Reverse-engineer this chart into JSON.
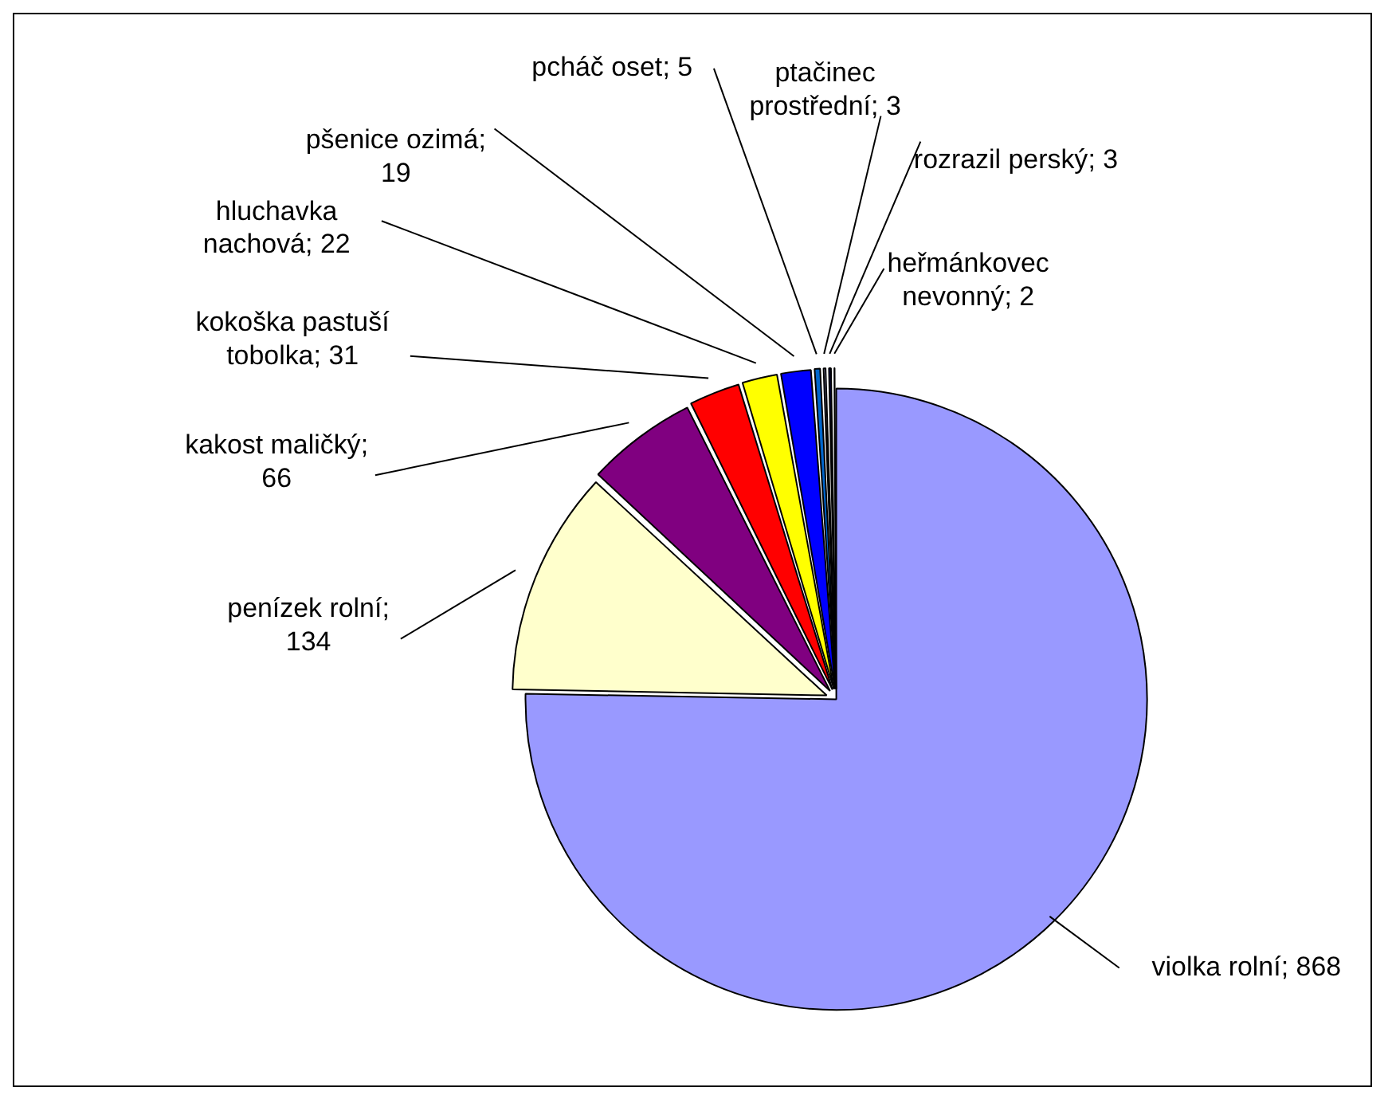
{
  "chart_data": {
    "type": "pie",
    "categories": [
      "violka rolní",
      "penízek rolní",
      "kakost maličký",
      "kokoška pastuší tobolka",
      "hluchavka nachová",
      "pšenice ozimá",
      "pcháč oset",
      "ptačinec prostřední",
      "rozrazil perský",
      "heřmánkovec nevonný"
    ],
    "values": [
      868,
      134,
      66,
      31,
      22,
      19,
      5,
      3,
      3,
      2
    ],
    "colors": [
      "#9999ff",
      "#ffffcc",
      "#800080",
      "#ff0000",
      "#ffff00",
      "#0000ff",
      "#0066cc",
      "#ccccff",
      "#000080",
      "#800080"
    ],
    "value_labels": [
      "; 868",
      "; 134",
      "; 66",
      "; 31",
      "; 22",
      "; 19",
      "; 5",
      "; 3",
      "; 3",
      "; 2"
    ],
    "legend": false
  }
}
